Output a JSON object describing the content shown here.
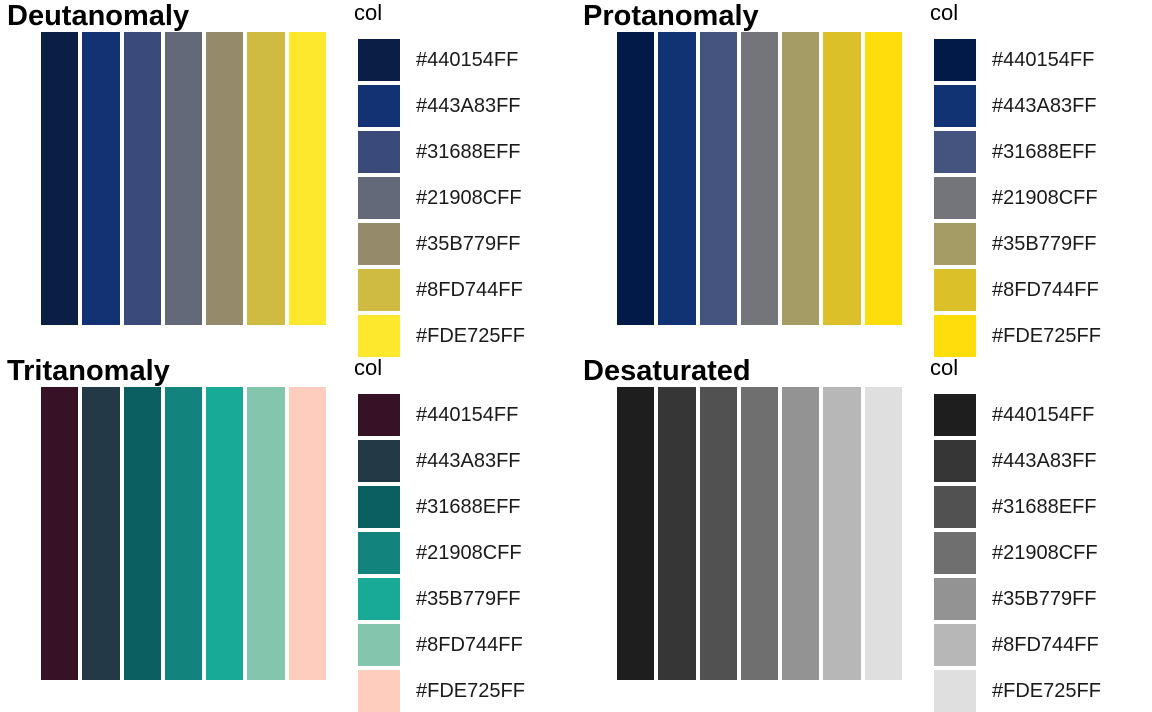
{
  "chart_data": [
    {
      "type": "bar",
      "title": "Deutanomaly",
      "legend_title": "col",
      "legend_position": "right",
      "grid": false,
      "categories": [
        "#440154FF",
        "#443A83FF",
        "#31688EFF",
        "#21908CFF",
        "#35B779FF",
        "#8FD744FF",
        "#FDE725FF"
      ],
      "values": [
        1,
        1,
        1,
        1,
        1,
        1,
        1
      ],
      "colors": [
        "#0b1e45",
        "#123273",
        "#3a4a7a",
        "#646979",
        "#958b6a",
        "#cfba42",
        "#fee82d"
      ]
    },
    {
      "type": "bar",
      "title": "Protanomaly",
      "legend_title": "col",
      "legend_position": "right",
      "grid": false,
      "categories": [
        "#440154FF",
        "#443A83FF",
        "#31688EFF",
        "#21908CFF",
        "#35B779FF",
        "#8FD744FF",
        "#FDE725FF"
      ],
      "values": [
        1,
        1,
        1,
        1,
        1,
        1,
        1
      ],
      "colors": [
        "#021a48",
        "#113273",
        "#44547e",
        "#74757b",
        "#a59b64",
        "#dbc02a",
        "#ffdd0d"
      ]
    },
    {
      "type": "bar",
      "title": "Tritanomaly",
      "legend_title": "col",
      "legend_position": "right",
      "grid": false,
      "categories": [
        "#440154FF",
        "#443A83FF",
        "#31688EFF",
        "#21908CFF",
        "#35B779FF",
        "#8FD744FF",
        "#FDE725FF"
      ],
      "values": [
        1,
        1,
        1,
        1,
        1,
        1,
        1
      ],
      "colors": [
        "#371126",
        "#243946",
        "#0c5f61",
        "#12837d",
        "#18aa97",
        "#84c6ad",
        "#fecdbd"
      ]
    },
    {
      "type": "bar",
      "title": "Desaturated",
      "legend_title": "col",
      "legend_position": "right",
      "grid": false,
      "categories": [
        "#440154FF",
        "#443A83FF",
        "#31688EFF",
        "#21908CFF",
        "#35B779FF",
        "#8FD744FF",
        "#FDE725FF"
      ],
      "values": [
        1,
        1,
        1,
        1,
        1,
        1,
        1
      ],
      "colors": [
        "#1e1e1e",
        "#363636",
        "#515151",
        "#6f6f6f",
        "#939393",
        "#b7b7b7",
        "#dfdfdf"
      ]
    }
  ]
}
